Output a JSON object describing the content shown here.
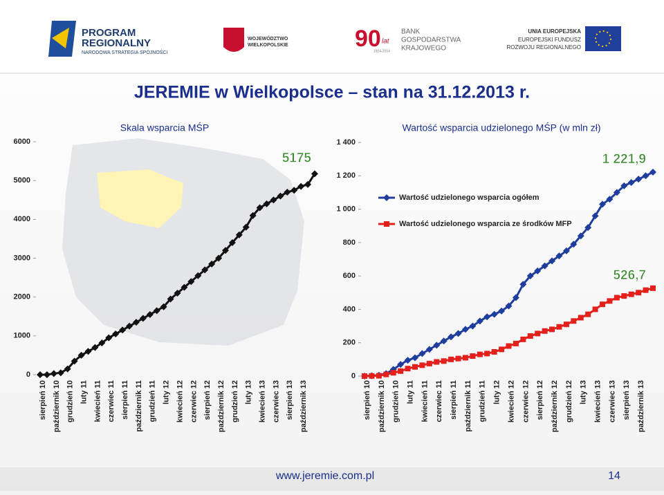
{
  "header": {
    "program": "PROGRAM",
    "program2": "REGIONALNY",
    "program3": "NARODOWA STRATEGIA SPÓJNOŚCI",
    "wojewodztwo": "WOJEWÓDZTWO",
    "wojewodztwo2": "WIELKOPOLSKIE",
    "bank_years": "90",
    "bank_lat": "lat",
    "bank_dates": "1924-2014",
    "bank": "BANK",
    "bank2": "GOSPODARSTWA",
    "bank3": "KRAJOWEGO",
    "eu": "UNIA EUROPEJSKA",
    "eu2": "EUROPEJSKI FUNDUSZ",
    "eu3": "ROZWOJU REGIONALNEGO"
  },
  "slide_title": "JEREMIE w Wielkopolsce – stan na 31.12.2013 r.",
  "footer": {
    "url": "www.jeremie.com.pl",
    "page": "14"
  },
  "chart_data": [
    {
      "type": "line",
      "title": "Skala wsparcia MŚP",
      "categories": [
        "sierpień 10",
        null,
        "październik 10",
        null,
        "grudzień 10",
        null,
        "luty 11",
        null,
        "kwiecień 11",
        null,
        "czerwiec 11",
        null,
        "sierpień 11",
        null,
        "październik 11",
        null,
        "grudzień 11",
        null,
        "luty 12",
        null,
        "kwiecień 12",
        null,
        "czerwiec 12",
        null,
        "sierpień 12",
        null,
        "październik 12",
        null,
        "grudzień 12",
        null,
        "luty 13",
        null,
        "kwiecień 13",
        null,
        "czerwiec 13",
        null,
        "sierpień 13",
        null,
        "październik 13",
        null,
        null
      ],
      "series": [
        {
          "color": "#111111",
          "marker": "diamond",
          "values": [
            0,
            0,
            30,
            50,
            150,
            350,
            500,
            600,
            700,
            820,
            950,
            1050,
            1150,
            1250,
            1350,
            1450,
            1550,
            1650,
            1750,
            1950,
            2100,
            2250,
            2400,
            2550,
            2700,
            2850,
            3000,
            3200,
            3400,
            3600,
            3800,
            4100,
            4300,
            4400,
            4500,
            4600,
            4700,
            4750,
            4850,
            4900,
            5175
          ]
        }
      ],
      "ylim": [
        0,
        6000
      ],
      "yticks": [
        0,
        1000,
        2000,
        3000,
        4000,
        5000,
        6000
      ],
      "legend": false
    },
    {
      "type": "line",
      "title": "Wartość wsparcia udzielonego MŚP (w mln zł)",
      "categories": [
        "sierpień 10",
        null,
        "październik 10",
        null,
        "grudzień 10",
        null,
        "luty 11",
        null,
        "kwiecień 11",
        null,
        "czerwiec 11",
        null,
        "sierpień 11",
        null,
        "październik 11",
        null,
        "grudzień 11",
        null,
        "luty 12",
        null,
        "kwiecień 12",
        null,
        "czerwiec 12",
        null,
        "sierpień 12",
        null,
        "październik 12",
        null,
        "grudzień 12",
        null,
        "luty 13",
        null,
        "kwiecień 13",
        null,
        "czerwiec 13",
        null,
        "sierpień 13",
        null,
        "październik 13",
        null,
        null
      ],
      "series": [
        {
          "name": "Wartość udzielonego wsparcia ogółem",
          "color": "#1f3d9c",
          "marker": "diamond",
          "values": [
            0,
            2,
            5,
            15,
            40,
            70,
            95,
            110,
            135,
            160,
            185,
            210,
            235,
            255,
            280,
            300,
            330,
            355,
            370,
            390,
            420,
            470,
            550,
            600,
            630,
            660,
            690,
            720,
            750,
            790,
            840,
            890,
            960,
            1030,
            1060,
            1100,
            1140,
            1160,
            1180,
            1200,
            1221.9
          ],
          "value_labels": [
            null,
            null,
            null,
            null,
            null,
            null,
            null,
            null,
            null,
            null,
            null,
            null,
            null,
            null,
            null,
            null,
            null,
            null,
            null,
            null,
            null,
            null,
            null,
            null,
            null,
            null,
            null,
            null,
            null,
            null,
            null,
            null,
            null,
            null,
            null,
            null,
            null,
            null,
            null,
            null,
            "1 221,9"
          ]
        },
        {
          "name": "Wartość udzielonego wsparcia ze środków MFP",
          "color": "#e3201b",
          "marker": "square",
          "values": [
            0,
            1,
            2,
            10,
            20,
            30,
            45,
            55,
            65,
            75,
            85,
            90,
            100,
            105,
            110,
            120,
            130,
            135,
            145,
            160,
            180,
            195,
            220,
            240,
            255,
            270,
            280,
            295,
            310,
            330,
            350,
            370,
            400,
            430,
            450,
            470,
            480,
            490,
            500,
            515,
            526.7
          ],
          "value_labels": [
            null,
            null,
            null,
            null,
            null,
            null,
            null,
            null,
            null,
            null,
            null,
            null,
            null,
            null,
            null,
            null,
            null,
            null,
            null,
            null,
            null,
            null,
            null,
            null,
            null,
            null,
            null,
            null,
            null,
            null,
            null,
            null,
            null,
            null,
            null,
            null,
            null,
            null,
            null,
            null,
            "526,7"
          ]
        }
      ],
      "ylim": [
        0,
        1400
      ],
      "yticks": [
        0,
        200,
        400,
        600,
        800,
        {
          "value": 1000,
          "label": "1 000"
        },
        {
          "value": 1200,
          "label": "1 200"
        },
        {
          "value": 1400,
          "label": "1 400"
        }
      ],
      "legend": "upper-left"
    }
  ]
}
